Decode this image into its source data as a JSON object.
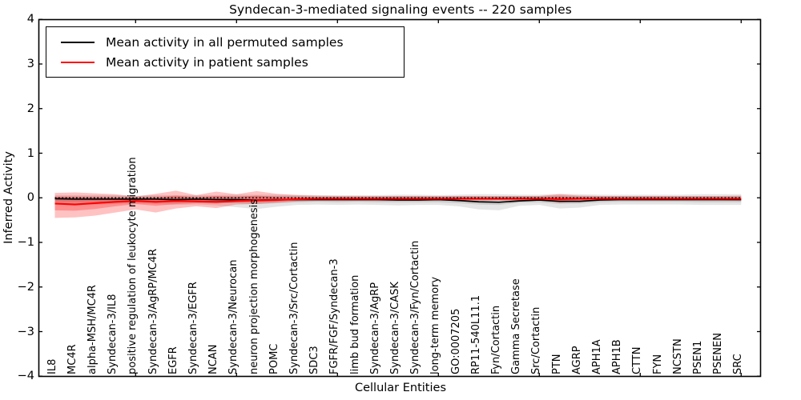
{
  "chart_data": {
    "type": "line",
    "title": "Syndecan-3-mediated signaling events -- 220 samples",
    "xlabel": "Cellular Entities",
    "ylabel": "Inferred Activity",
    "ylim": [
      -4,
      4
    ],
    "yticks": [
      4,
      3,
      2,
      1,
      0,
      -1,
      -2,
      -3,
      -4
    ],
    "x_major_tick_indices": [
      4,
      9,
      14,
      19,
      24,
      29,
      34
    ],
    "grid": false,
    "legend_position": "upper-left",
    "categories": [
      "IL8",
      "MC4R",
      "alpha-MSH/MC4R",
      "Syndecan-3/IL8",
      "positive regulation of leukocyte migration",
      "Syndecan-3/AgRP/MC4R",
      "EGFR",
      "Syndecan-3/EGFR",
      "NCAN",
      "Syndecan-3/Neurocan",
      "neuron projection morphogenesis",
      "POMC",
      "Syndecan-3/Src/Cortactin",
      "SDC3",
      "FGFR/FGF/Syndecan-3",
      "limb bud formation",
      "Syndecan-3/AgRP",
      "Syndecan-3/CASK",
      "Syndecan-3/Fyn/Cortactin",
      "long-term memory",
      "GO:0007205",
      "RP11-540L11.1",
      "Fyn/Cortactin",
      "Gamma Secretase",
      "Src/Cortactin",
      "PTN",
      "AGRP",
      "APH1A",
      "APH1B",
      "CTTN",
      "FYN",
      "NCSTN",
      "PSEN1",
      "PSENEN",
      "SRC"
    ],
    "series": [
      {
        "name": "Mean activity in all permuted samples",
        "color": "#000000",
        "values": [
          -0.02,
          -0.03,
          -0.03,
          -0.03,
          -0.03,
          -0.03,
          -0.04,
          -0.03,
          -0.04,
          -0.04,
          -0.05,
          -0.04,
          -0.04,
          -0.04,
          -0.04,
          -0.04,
          -0.04,
          -0.05,
          -0.05,
          -0.04,
          -0.06,
          -0.09,
          -0.1,
          -0.07,
          -0.05,
          -0.08,
          -0.08,
          -0.05,
          -0.04,
          -0.04,
          -0.04,
          -0.04,
          -0.04,
          -0.04,
          -0.04
        ]
      },
      {
        "name": "Mean activity in patient samples",
        "color": "#ff0000",
        "values": [
          -0.13,
          -0.15,
          -0.12,
          -0.09,
          -0.07,
          -0.09,
          -0.07,
          -0.08,
          -0.09,
          -0.07,
          -0.06,
          -0.05,
          -0.03,
          -0.02,
          -0.02,
          -0.02,
          -0.02,
          -0.02,
          -0.02,
          -0.02,
          -0.02,
          -0.02,
          -0.02,
          -0.02,
          -0.02,
          -0.03,
          -0.02,
          -0.02,
          -0.02,
          -0.02,
          -0.02,
          -0.02,
          -0.02,
          -0.02,
          -0.02
        ]
      }
    ],
    "reference_line": {
      "y": 0,
      "style": "dotted",
      "color": "#000000"
    },
    "bands": [
      {
        "name": "permuted samples range (outer)",
        "color": "#bbbbbb",
        "opacity": 0.38,
        "upper": [
          0.06,
          0.06,
          0.06,
          0.06,
          0.05,
          0.06,
          0.06,
          0.06,
          0.06,
          0.07,
          0.07,
          0.07,
          0.07,
          0.06,
          0.06,
          0.06,
          0.06,
          0.07,
          0.07,
          0.06,
          0.07,
          0.08,
          0.08,
          0.07,
          0.07,
          0.09,
          0.08,
          0.07,
          0.07,
          0.07,
          0.07,
          0.07,
          0.08,
          0.08,
          0.08
        ],
        "lower": [
          -0.15,
          -0.15,
          -0.15,
          -0.14,
          -0.13,
          -0.14,
          -0.16,
          -0.15,
          -0.17,
          -0.21,
          -0.25,
          -0.2,
          -0.16,
          -0.15,
          -0.16,
          -0.15,
          -0.16,
          -0.17,
          -0.16,
          -0.16,
          -0.19,
          -0.26,
          -0.28,
          -0.18,
          -0.16,
          -0.24,
          -0.22,
          -0.16,
          -0.15,
          -0.15,
          -0.15,
          -0.15,
          -0.16,
          -0.16,
          -0.16
        ]
      },
      {
        "name": "permuted samples range (inner)",
        "color": "#999999",
        "opacity": 0.32,
        "upper": [
          0.03,
          0.03,
          0.03,
          0.03,
          0.03,
          0.03,
          0.03,
          0.03,
          0.03,
          0.04,
          0.04,
          0.04,
          0.04,
          0.03,
          0.03,
          0.03,
          0.03,
          0.04,
          0.04,
          0.03,
          0.04,
          0.04,
          0.04,
          0.04,
          0.04,
          0.05,
          0.04,
          0.04,
          0.04,
          0.04,
          0.04,
          0.04,
          0.04,
          0.04,
          0.04
        ],
        "lower": [
          -0.09,
          -0.09,
          -0.09,
          -0.09,
          -0.08,
          -0.09,
          -0.1,
          -0.09,
          -0.1,
          -0.12,
          -0.14,
          -0.12,
          -0.1,
          -0.09,
          -0.1,
          -0.09,
          -0.1,
          -0.1,
          -0.1,
          -0.1,
          -0.12,
          -0.15,
          -0.16,
          -0.11,
          -0.1,
          -0.14,
          -0.13,
          -0.1,
          -0.09,
          -0.09,
          -0.09,
          -0.09,
          -0.1,
          -0.1,
          -0.1
        ]
      },
      {
        "name": "patient samples range (outer)",
        "color": "#ff0000",
        "opacity": 0.24,
        "upper": [
          0.11,
          0.12,
          0.1,
          0.08,
          0.03,
          0.09,
          0.16,
          0.06,
          0.14,
          0.08,
          0.15,
          0.09,
          0.06,
          0.05,
          0.04,
          0.04,
          0.04,
          0.04,
          0.04,
          0.04,
          0.04,
          0.04,
          0.04,
          0.04,
          0.04,
          0.08,
          0.05,
          0.04,
          0.04,
          0.04,
          0.04,
          0.04,
          0.04,
          0.04,
          0.05
        ],
        "lower": [
          -0.45,
          -0.44,
          -0.4,
          -0.33,
          -0.26,
          -0.33,
          -0.24,
          -0.19,
          -0.23,
          -0.15,
          -0.14,
          -0.11,
          -0.08,
          -0.07,
          -0.07,
          -0.07,
          -0.07,
          -0.07,
          -0.07,
          -0.06,
          -0.06,
          -0.06,
          -0.06,
          -0.06,
          -0.06,
          -0.11,
          -0.08,
          -0.06,
          -0.06,
          -0.06,
          -0.06,
          -0.06,
          -0.06,
          -0.06,
          -0.07
        ]
      },
      {
        "name": "patient samples range (inner)",
        "color": "#ff0000",
        "opacity": 0.26,
        "upper": [
          0.02,
          0.02,
          0.01,
          0.0,
          0.0,
          0.01,
          0.05,
          0.01,
          0.04,
          0.02,
          0.05,
          0.02,
          0.01,
          0.01,
          0.01,
          0.01,
          0.01,
          0.01,
          0.01,
          0.01,
          0.01,
          0.01,
          0.01,
          0.01,
          0.01,
          0.03,
          0.01,
          0.01,
          0.01,
          0.01,
          0.01,
          0.01,
          0.01,
          0.01,
          0.01
        ],
        "lower": [
          -0.28,
          -0.29,
          -0.25,
          -0.19,
          -0.14,
          -0.18,
          -0.14,
          -0.12,
          -0.13,
          -0.1,
          -0.09,
          -0.08,
          -0.06,
          -0.05,
          -0.05,
          -0.05,
          -0.05,
          -0.05,
          -0.05,
          -0.05,
          -0.05,
          -0.05,
          -0.05,
          -0.05,
          -0.05,
          -0.08,
          -0.06,
          -0.05,
          -0.05,
          -0.05,
          -0.05,
          -0.05,
          -0.05,
          -0.05,
          -0.05
        ]
      }
    ],
    "legend": [
      {
        "label": "Mean activity in all permuted samples",
        "color": "#000000"
      },
      {
        "label": "Mean activity in patient samples",
        "color": "#ff0000"
      }
    ]
  }
}
